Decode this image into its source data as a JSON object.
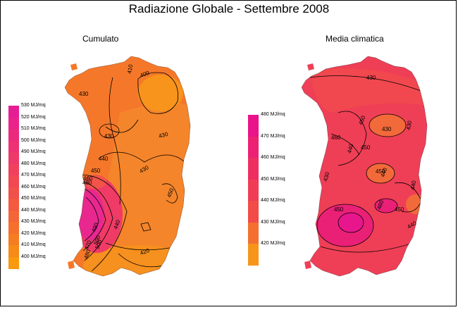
{
  "title": "Radiazione Globale - Settembre 2008",
  "maps": {
    "left": {
      "title": "Cumulato",
      "legend": [
        {
          "label": "530 MJ/mq",
          "color": "#e61e96"
        },
        {
          "label": "520 MJ/mq",
          "color": "#e9238a"
        },
        {
          "label": "510 MJ/mq",
          "color": "#eb2a7e"
        },
        {
          "label": "500 MJ/mq",
          "color": "#ed3173"
        },
        {
          "label": "490 MJ/mq",
          "color": "#ef3968"
        },
        {
          "label": "480 MJ/mq",
          "color": "#f0405d"
        },
        {
          "label": "470 MJ/mq",
          "color": "#f14853"
        },
        {
          "label": "460 MJ/mq",
          "color": "#f2504a"
        },
        {
          "label": "450 MJ/mq",
          "color": "#f35a40"
        },
        {
          "label": "440 MJ/mq",
          "color": "#f46537"
        },
        {
          "label": "430 MJ/mq",
          "color": "#f5702c"
        },
        {
          "label": "420 MJ/mq",
          "color": "#f67c22"
        },
        {
          "label": "410 MJ/mq",
          "color": "#f78a18"
        },
        {
          "label": "400 MJ/mq",
          "color": "#f8990e"
        }
      ],
      "contour_labels": [
        "410",
        "400",
        "430",
        "430",
        "430",
        "440",
        "430",
        "450",
        "450",
        "440",
        "420",
        "490",
        "470",
        "500",
        "480",
        "500",
        "480",
        "460"
      ]
    },
    "right": {
      "title": "Media climatica",
      "legend": [
        {
          "label": "480 MJ/mq",
          "color": "#e9138a"
        },
        {
          "label": "470 MJ/mq",
          "color": "#ec2173"
        },
        {
          "label": "460 MJ/mq",
          "color": "#ee2f62"
        },
        {
          "label": "450 MJ/mq",
          "color": "#f03d55"
        },
        {
          "label": "440 MJ/mq",
          "color": "#f24b48"
        },
        {
          "label": "430 MJ/mq",
          "color": "#f47030"
        },
        {
          "label": "420 MJ/mq",
          "color": "#f7951a"
        }
      ],
      "contour_labels": [
        "430",
        "450",
        "430",
        "440",
        "440",
        "450",
        "430",
        "430",
        "440",
        "460",
        "460",
        "440",
        "450",
        "450",
        "450"
      ]
    }
  },
  "colors": {
    "left_base": "#f5782a",
    "left_high": "#e8288f",
    "right_base": "#ef3f56",
    "right_low": "#f26a3a",
    "right_high": "#e8168c"
  }
}
